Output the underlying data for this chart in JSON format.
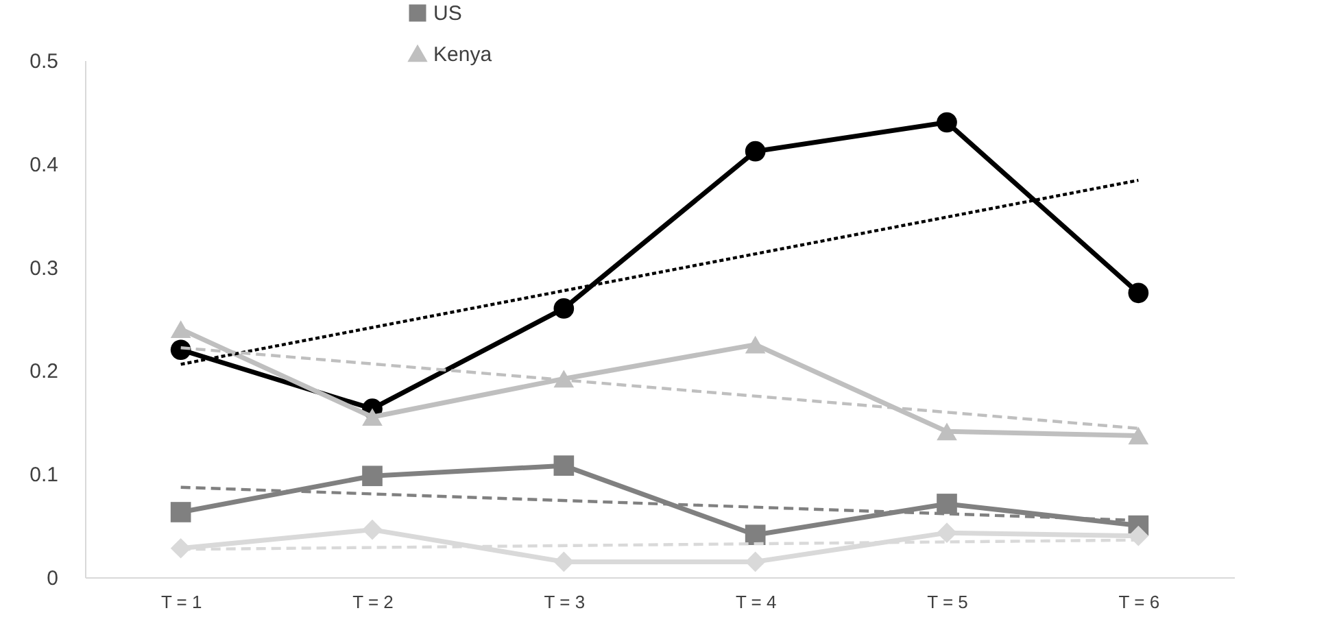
{
  "chart_data": {
    "type": "line",
    "categories": [
      "T = 1",
      "T = 2",
      "T = 3",
      "T = 4",
      "T = 5",
      "T = 6"
    ],
    "series": [
      {
        "color": "#000000",
        "marker": "circle",
        "line_style": "solid",
        "values": [
          0.22,
          0.163,
          0.26,
          0.412,
          0.44,
          0.275
        ]
      },
      {
        "name": "US",
        "color": "#808080",
        "marker": "square",
        "line_style": "solid",
        "values": [
          0.063,
          0.098,
          0.108,
          0.041,
          0.071,
          0.05
        ]
      },
      {
        "name": "Kenya",
        "color": "#bfbfbf",
        "marker": "triangle",
        "line_style": "solid",
        "values": [
          0.24,
          0.155,
          0.192,
          0.225,
          0.141,
          0.137
        ]
      },
      {
        "color": "#d9d9d9",
        "marker": "diamond",
        "line_style": "solid",
        "values": [
          0.028,
          0.046,
          0.015,
          0.015,
          0.043,
          0.04
        ]
      },
      {
        "type": "line",
        "color": "#000000",
        "marker": "none",
        "line_style": "dotted",
        "x": [
          "T = 1",
          "T = 6"
        ],
        "values": [
          0.206,
          0.384
        ]
      },
      {
        "type": "line",
        "color": "#808080",
        "marker": "none",
        "line_style": "dashed",
        "x": [
          "T = 1",
          "T = 6"
        ],
        "values": [
          0.087,
          0.055
        ]
      },
      {
        "type": "line",
        "color": "#bfbfbf",
        "marker": "none",
        "line_style": "dashed",
        "x": [
          "T = 1",
          "T = 6"
        ],
        "values": [
          0.222,
          0.144
        ]
      },
      {
        "type": "line",
        "color": "#d9d9d9",
        "marker": "none",
        "line_style": "dashed",
        "x": [
          "T = 1",
          "T = 6"
        ],
        "values": [
          0.027,
          0.036
        ]
      }
    ],
    "ylim": [
      0,
      0.5
    ],
    "yticks": [
      0,
      0.1,
      0.2,
      0.3,
      0.4,
      0.5
    ],
    "grid": false,
    "legend": "top"
  }
}
